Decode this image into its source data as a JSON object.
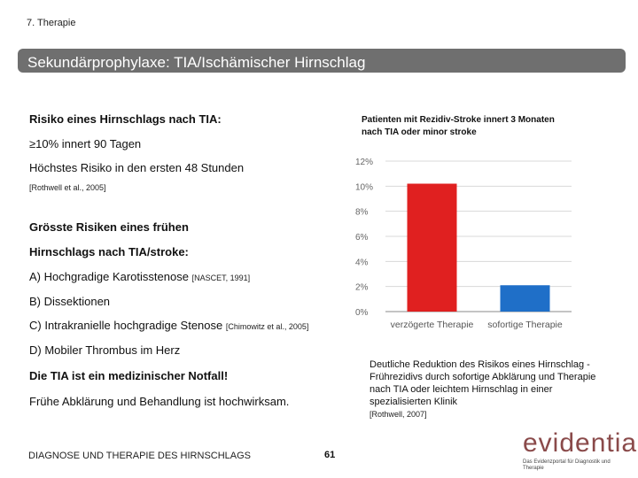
{
  "header": {
    "chapter": "7. Therapie",
    "title": "Sekundärprophylaxe: TIA/Ischämischer Hirnschlag"
  },
  "left": {
    "risk_heading": "Risiko eines Hirnschlags nach TIA:",
    "risk_line1": "≥10% innert 90 Tagen",
    "risk_line2": "Höchstes Risiko in den ersten 48 Stunden",
    "risk_ref": "[Rothwell et al., 2005]",
    "greatest_heading_line1": "Grösste Risiken eines frühen",
    "greatest_heading_line2": "Hirnschlags nach TIA/stroke:",
    "items": [
      {
        "text": "A) Hochgradige Karotisstenose",
        "ref": "[NASCET, 1991]"
      },
      {
        "text": "B) Dissektionen",
        "ref": ""
      },
      {
        "text": "C) Intrakranielle hochgradige Stenose",
        "ref": "[Chimowitz et al., 2005]"
      },
      {
        "text": "D) Mobiler Thrombus im Herz",
        "ref": ""
      }
    ],
    "emergency": "Die TIA ist ein medizinischer Notfall!",
    "early": "Frühe Abklärung und Behandlung ist hochwirksam."
  },
  "chart_data": {
    "type": "bar",
    "title": "Patienten mit Rezidiv-Stroke innert 3 Monaten nach TIA oder minor stroke",
    "categories": [
      "verzögerte Therapie",
      "sofortige Therapie"
    ],
    "values": [
      10.2,
      2.1
    ],
    "colors": [
      "#e02020",
      "#1f6fc8"
    ],
    "ylim": [
      0,
      12
    ],
    "yticks": [
      "0%",
      "2%",
      "4%",
      "6%",
      "8%",
      "10%",
      "12%"
    ],
    "xlabel": "",
    "ylabel": ""
  },
  "note": {
    "text": "Deutliche Reduktion des Risikos eines Hirnschlag -Frührezidivs durch sofortige Abklärung und Therapie nach TIA oder leichtem Hirnschlag in einer spezialisierten Klinik",
    "ref": "[Rothwell, 2007]"
  },
  "footer": {
    "text": "DIAGNOSE UND THERAPIE DES HIRNSCHLAGS",
    "page": "61",
    "logo": "evidentia",
    "logo_sub": "Das Evidenzportal für Diagnostik und Therapie"
  }
}
